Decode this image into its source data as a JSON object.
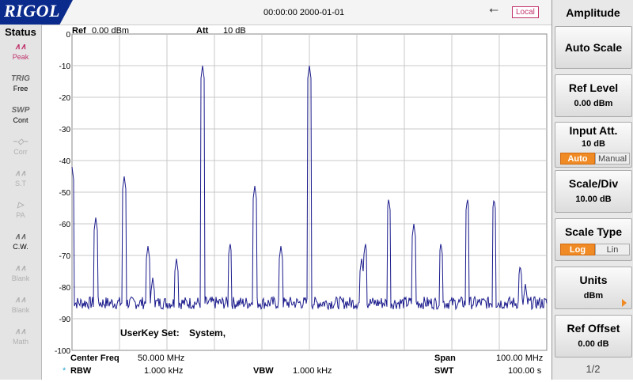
{
  "header": {
    "brand": "RIGOL",
    "datetime": "00:00:00 2000-01-01",
    "usb_icon": "usb-icon",
    "local_label": "Local"
  },
  "status": {
    "title": "Status",
    "items": [
      {
        "icon": "peak-icon",
        "glyph": "∧∧",
        "label": "Peak",
        "state": "active"
      },
      {
        "icon": "trig-text-icon",
        "glyph": "TRIG",
        "label": "Free",
        "state": "normal"
      },
      {
        "icon": "swp-text-icon",
        "glyph": "SWP",
        "label": "Cont",
        "state": "normal"
      },
      {
        "icon": "corr-icon",
        "glyph": "~◇~",
        "label": "Corr",
        "state": "dim"
      },
      {
        "icon": "st-icon",
        "glyph": "∧∧",
        "label": "S.T",
        "state": "dim"
      },
      {
        "icon": "pa-icon",
        "glyph": "▷",
        "label": "PA",
        "state": "dim"
      },
      {
        "icon": "cw-icon",
        "glyph": "∧∧",
        "label": "C.W.",
        "state": "normal"
      },
      {
        "icon": "blank-icon",
        "glyph": "∧∧",
        "label": "Blank",
        "state": "dim"
      },
      {
        "icon": "blank-icon",
        "glyph": "∧∧",
        "label": "Blank",
        "state": "dim"
      },
      {
        "icon": "math-icon",
        "glyph": "∧∧",
        "label": "Math",
        "state": "dim"
      }
    ]
  },
  "plot": {
    "ref_label": "Ref",
    "ref_value": "0.00 dBm",
    "att_label": "Att",
    "att_value": "10 dB",
    "userkey_label": "UserKey Set:",
    "userkey_value": "System,",
    "center_freq_label": "Center Freq",
    "center_freq_value": "50.000 MHz",
    "span_label": "Span",
    "span_value": "100.00 MHz",
    "rbw_marker": "*",
    "rbw_label": "RBW",
    "rbw_value": "1.000 kHz",
    "vbw_label": "VBW",
    "vbw_value": "1.000 kHz",
    "swt_label": "SWT",
    "swt_value": "100.00 s",
    "y_ticks": [
      "0",
      "-10",
      "-20",
      "-30",
      "-40",
      "-50",
      "-60",
      "-70",
      "-80",
      "-90",
      "-100"
    ],
    "trace_color": "#1a1a8c",
    "grid_color": "#c8c8c8"
  },
  "chart_data": {
    "type": "line",
    "ylim": [
      -100,
      0
    ],
    "xlim": [
      0,
      100
    ],
    "grid": true,
    "noise_floor": -85,
    "series": [
      {
        "x": [
          0,
          5,
          11,
          16,
          17,
          22,
          27.5,
          33.3,
          38.5,
          44,
          50,
          61,
          61.8,
          66.7,
          72,
          77.7,
          83.3,
          88.9,
          94.4,
          95.5
        ],
        "values": [
          -42,
          -58,
          -45,
          -67,
          -77,
          -71,
          -10,
          -66,
          -48,
          -67,
          -10,
          -71,
          -66,
          -52,
          -60,
          -66,
          -52,
          -52,
          -73,
          -79
        ]
      }
    ]
  },
  "menu": {
    "title": "Amplitude",
    "auto_scale": "Auto Scale",
    "ref_level_label": "Ref Level",
    "ref_level_value": "0.00 dBm",
    "input_att_label": "Input Att.",
    "input_att_value": "10 dB",
    "att_auto": "Auto",
    "att_manual": "Manual",
    "scale_div_label": "Scale/Div",
    "scale_div_value": "10.00 dB",
    "scale_type_label": "Scale Type",
    "scale_log": "Log",
    "scale_lin": "Lin",
    "units_label": "Units",
    "units_value": "dBm",
    "ref_offset_label": "Ref Offset",
    "ref_offset_value": "0.00 dB",
    "page": "1/2",
    "accent": "#f08a24"
  }
}
